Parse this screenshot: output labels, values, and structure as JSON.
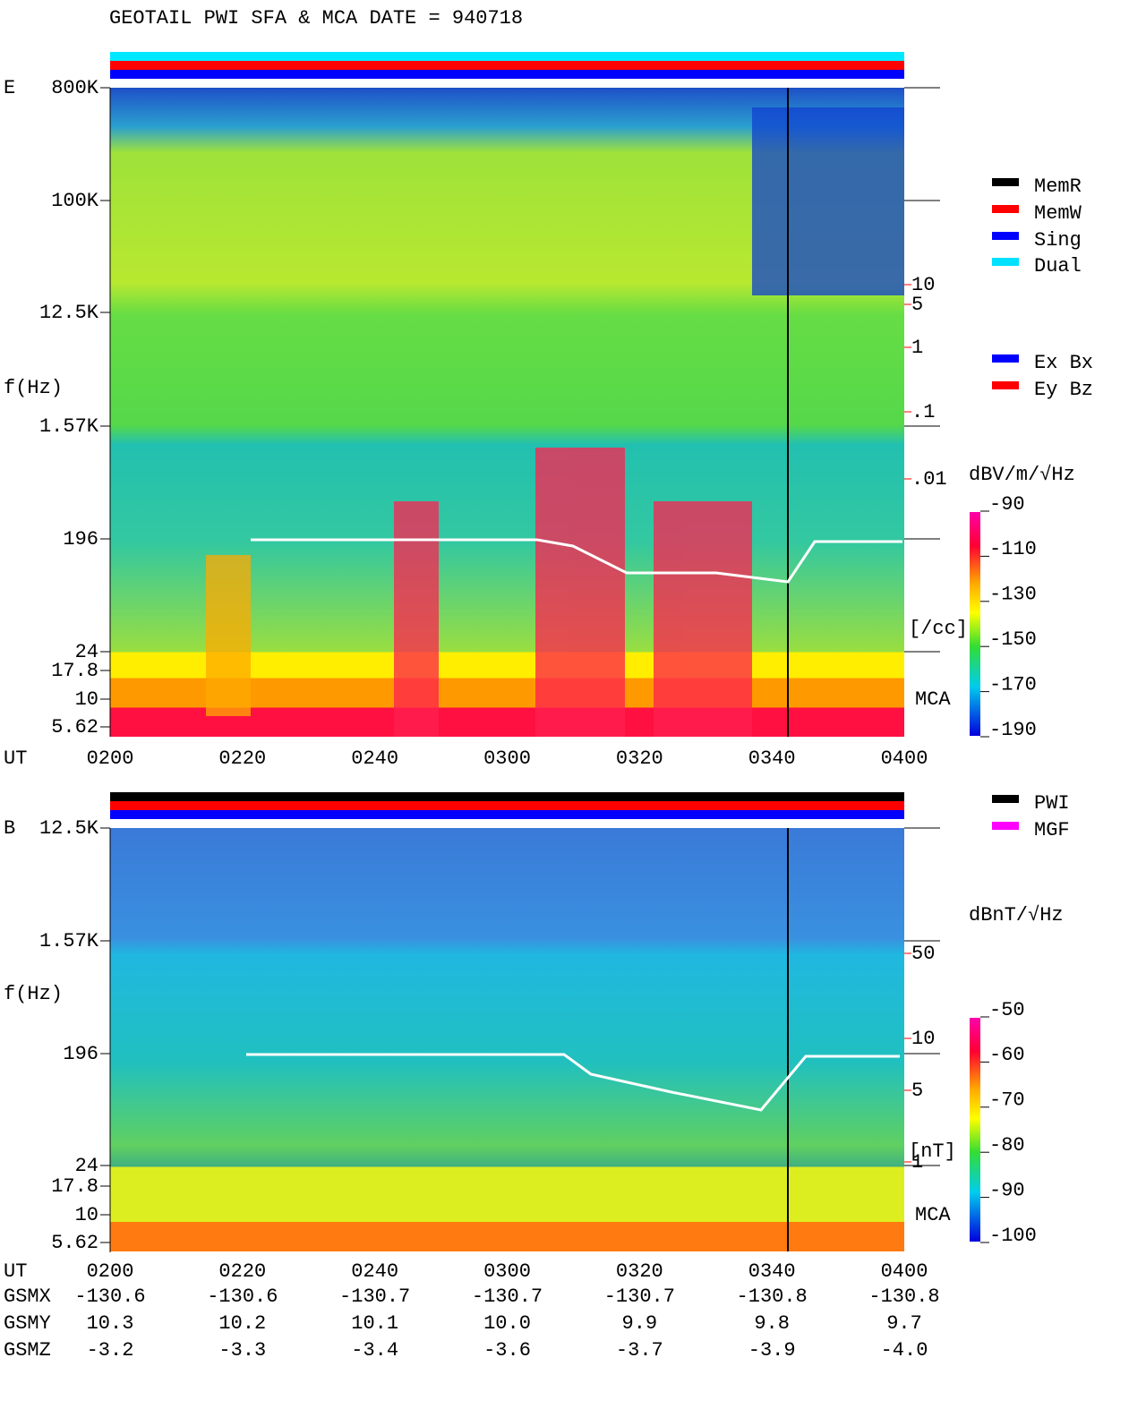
{
  "title": "GEOTAIL  PWI SFA & MCA   DATE = 940718",
  "panels": [
    {
      "label": "E",
      "ylabel": "f(Hz)",
      "freq_ticks": [
        "800K",
        "100K",
        "12.5K",
        "1.57K",
        "196",
        "24",
        "17.8",
        "10",
        "5.62"
      ],
      "mca_label": "MCA",
      "x_label": "UT",
      "time_ticks": [
        "0200",
        "0220",
        "0240",
        "0300",
        "0320",
        "0340",
        "0400"
      ],
      "density_ticks": [
        "10",
        "5",
        "1",
        ".1",
        ".01"
      ],
      "density_unit": "[/cc]",
      "mode_legend": [
        {
          "text": "MemR",
          "color": "#000000"
        },
        {
          "text": "MemW",
          "color": "#ff0000"
        },
        {
          "text": "Sing",
          "color": "#0000ff"
        },
        {
          "text": "Dual",
          "color": "#00e0ff"
        }
      ],
      "component_legend": [
        {
          "text": "Ex Bx",
          "color": "#0000ff"
        },
        {
          "text": "Ey Bz",
          "color": "#ff0000"
        }
      ],
      "colorbar_unit": "dBV/m/√Hz",
      "colorbar_ticks": [
        "-90",
        "-110",
        "-130",
        "-150",
        "-170",
        "-190"
      ]
    },
    {
      "label": "B",
      "ylabel": "f(Hz)",
      "freq_ticks": [
        "12.5K",
        "1.57K",
        "196",
        "24",
        "17.8",
        "10",
        "5.62"
      ],
      "mca_label": "MCA",
      "x_label": "UT",
      "time_ticks": [
        "0200",
        "0220",
        "0240",
        "0300",
        "0320",
        "0340",
        "0400"
      ],
      "density_ticks": [
        "50",
        "10",
        "5",
        "1"
      ],
      "density_unit": "[nT]",
      "mode_legend": [
        {
          "text": "PWI",
          "color": "#000000"
        },
        {
          "text": "MGF",
          "color": "#ff00ff"
        }
      ],
      "colorbar_unit": "dBnT/√Hz",
      "colorbar_ticks": [
        "-50",
        "-60",
        "-70",
        "-80",
        "-90",
        "-100"
      ]
    }
  ],
  "orbit": [
    {
      "label": "GSMX",
      "values": [
        "-130.6",
        "-130.6",
        "-130.7",
        "-130.7",
        "-130.7",
        "-130.8",
        "-130.8"
      ]
    },
    {
      "label": "GSMY",
      "values": [
        "10.3",
        "10.2",
        "10.1",
        "10.0",
        "9.9",
        "9.8",
        "9.7"
      ]
    },
    {
      "label": "GSMZ",
      "values": [
        "-3.2",
        "-3.3",
        "-3.4",
        "-3.6",
        "-3.7",
        "-3.9",
        "-4.0"
      ]
    }
  ]
}
